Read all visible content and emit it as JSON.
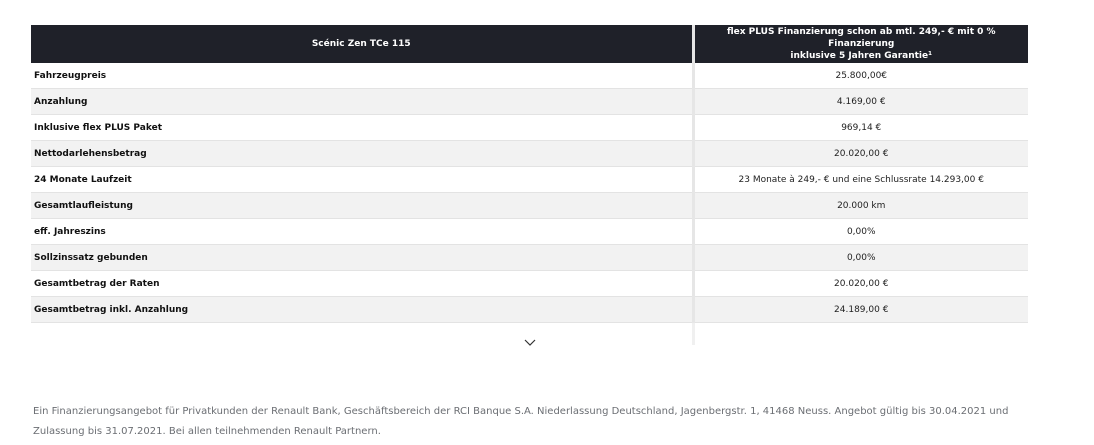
{
  "header": {
    "col1": "Scénic Zen TCe 115",
    "col2_line1": "flex PLUS Finanzierung schon ab mtl. 249,- € mit 0 % Finanzierung",
    "col2_line2": "inklusive 5 Jahren Garantie¹"
  },
  "rows": [
    {
      "label": "Fahrzeugpreis",
      "value": "25.800,00€"
    },
    {
      "label": "Anzahlung",
      "value": "4.169,00 €"
    },
    {
      "label": "Inklusive flex PLUS Paket",
      "value": "969,14 €"
    },
    {
      "label": "Nettodarlehensbetrag",
      "value": "20.020,00 €"
    },
    {
      "label": "24 Monate Laufzeit",
      "value": "23 Monate à 249,- € und eine Schlussrate 14.293,00 €"
    },
    {
      "label": "Gesamtlaufleistung",
      "value": "20.000 km"
    },
    {
      "label": "eff. Jahreszins",
      "value": "0,00%"
    },
    {
      "label": "Sollzinssatz gebunden",
      "value": "0,00%"
    },
    {
      "label": "Gesamtbetrag der Raten",
      "value": "20.020,00 €"
    },
    {
      "label": "Gesamtbetrag inkl. Anzahlung",
      "value": "24.189,00 €"
    }
  ],
  "expand_icon": "chevron-down-icon",
  "footnote": {
    "line1": "Ein Finanzierungsangebot für Privatkunden der Renault Bank, Geschäftsbereich der RCI Banque S.A. Niederlassung Deutschland, Jagenbergstr. 1, 41468 Neuss. Angebot gültig bis 30.04.2021 und",
    "line2": "Zulassung bis 31.07.2021. Bei allen teilnehmenden Renault Partnern."
  },
  "colors": {
    "header_bg": "#1f2129",
    "header_text": "#ffffff",
    "row_alt": "#f2f2f2",
    "footnote_text": "#6b6e73"
  }
}
